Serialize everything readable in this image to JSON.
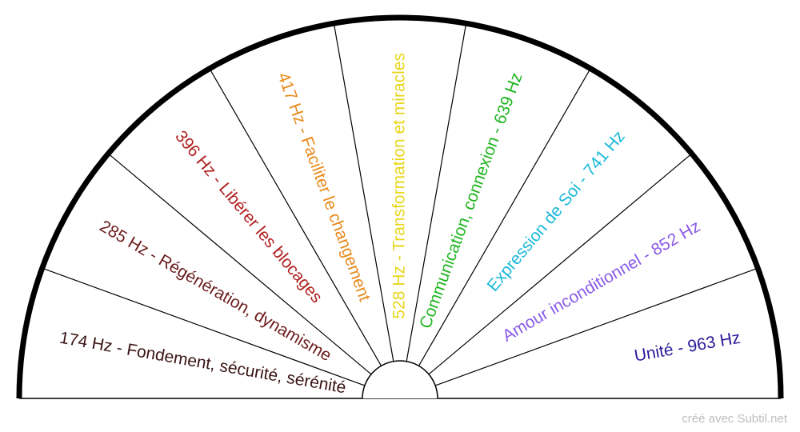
{
  "chart_data": {
    "type": "pie",
    "shape": "semicircle",
    "labels": [
      {
        "text": "174 Hz - Fondement, sécurité, sérénité",
        "color": "#3b1515"
      },
      {
        "text": "285 Hz - Régénération, dynamisme",
        "color": "#6b1c1c"
      },
      {
        "text": "396 Hz - Libérer les blocages",
        "color": "#b01e1e"
      },
      {
        "text": "417 Hz - Faciliter le changement",
        "color": "#e8891a"
      },
      {
        "text": "528 Hz - Transformation et miracles",
        "color": "#e8d61c"
      },
      {
        "text": "Communication, connexion - 639 Hz",
        "color": "#1fb51f"
      },
      {
        "text": "Expression de Soi - 741 Hz",
        "color": "#1ab8d8"
      },
      {
        "text": "Amour inconditionnel - 852 Hz",
        "color": "#8a5be8"
      },
      {
        "text": "Unité - 963 Hz",
        "color": "#2a1a9a"
      }
    ]
  },
  "credit": "créé avec Subtil.net"
}
